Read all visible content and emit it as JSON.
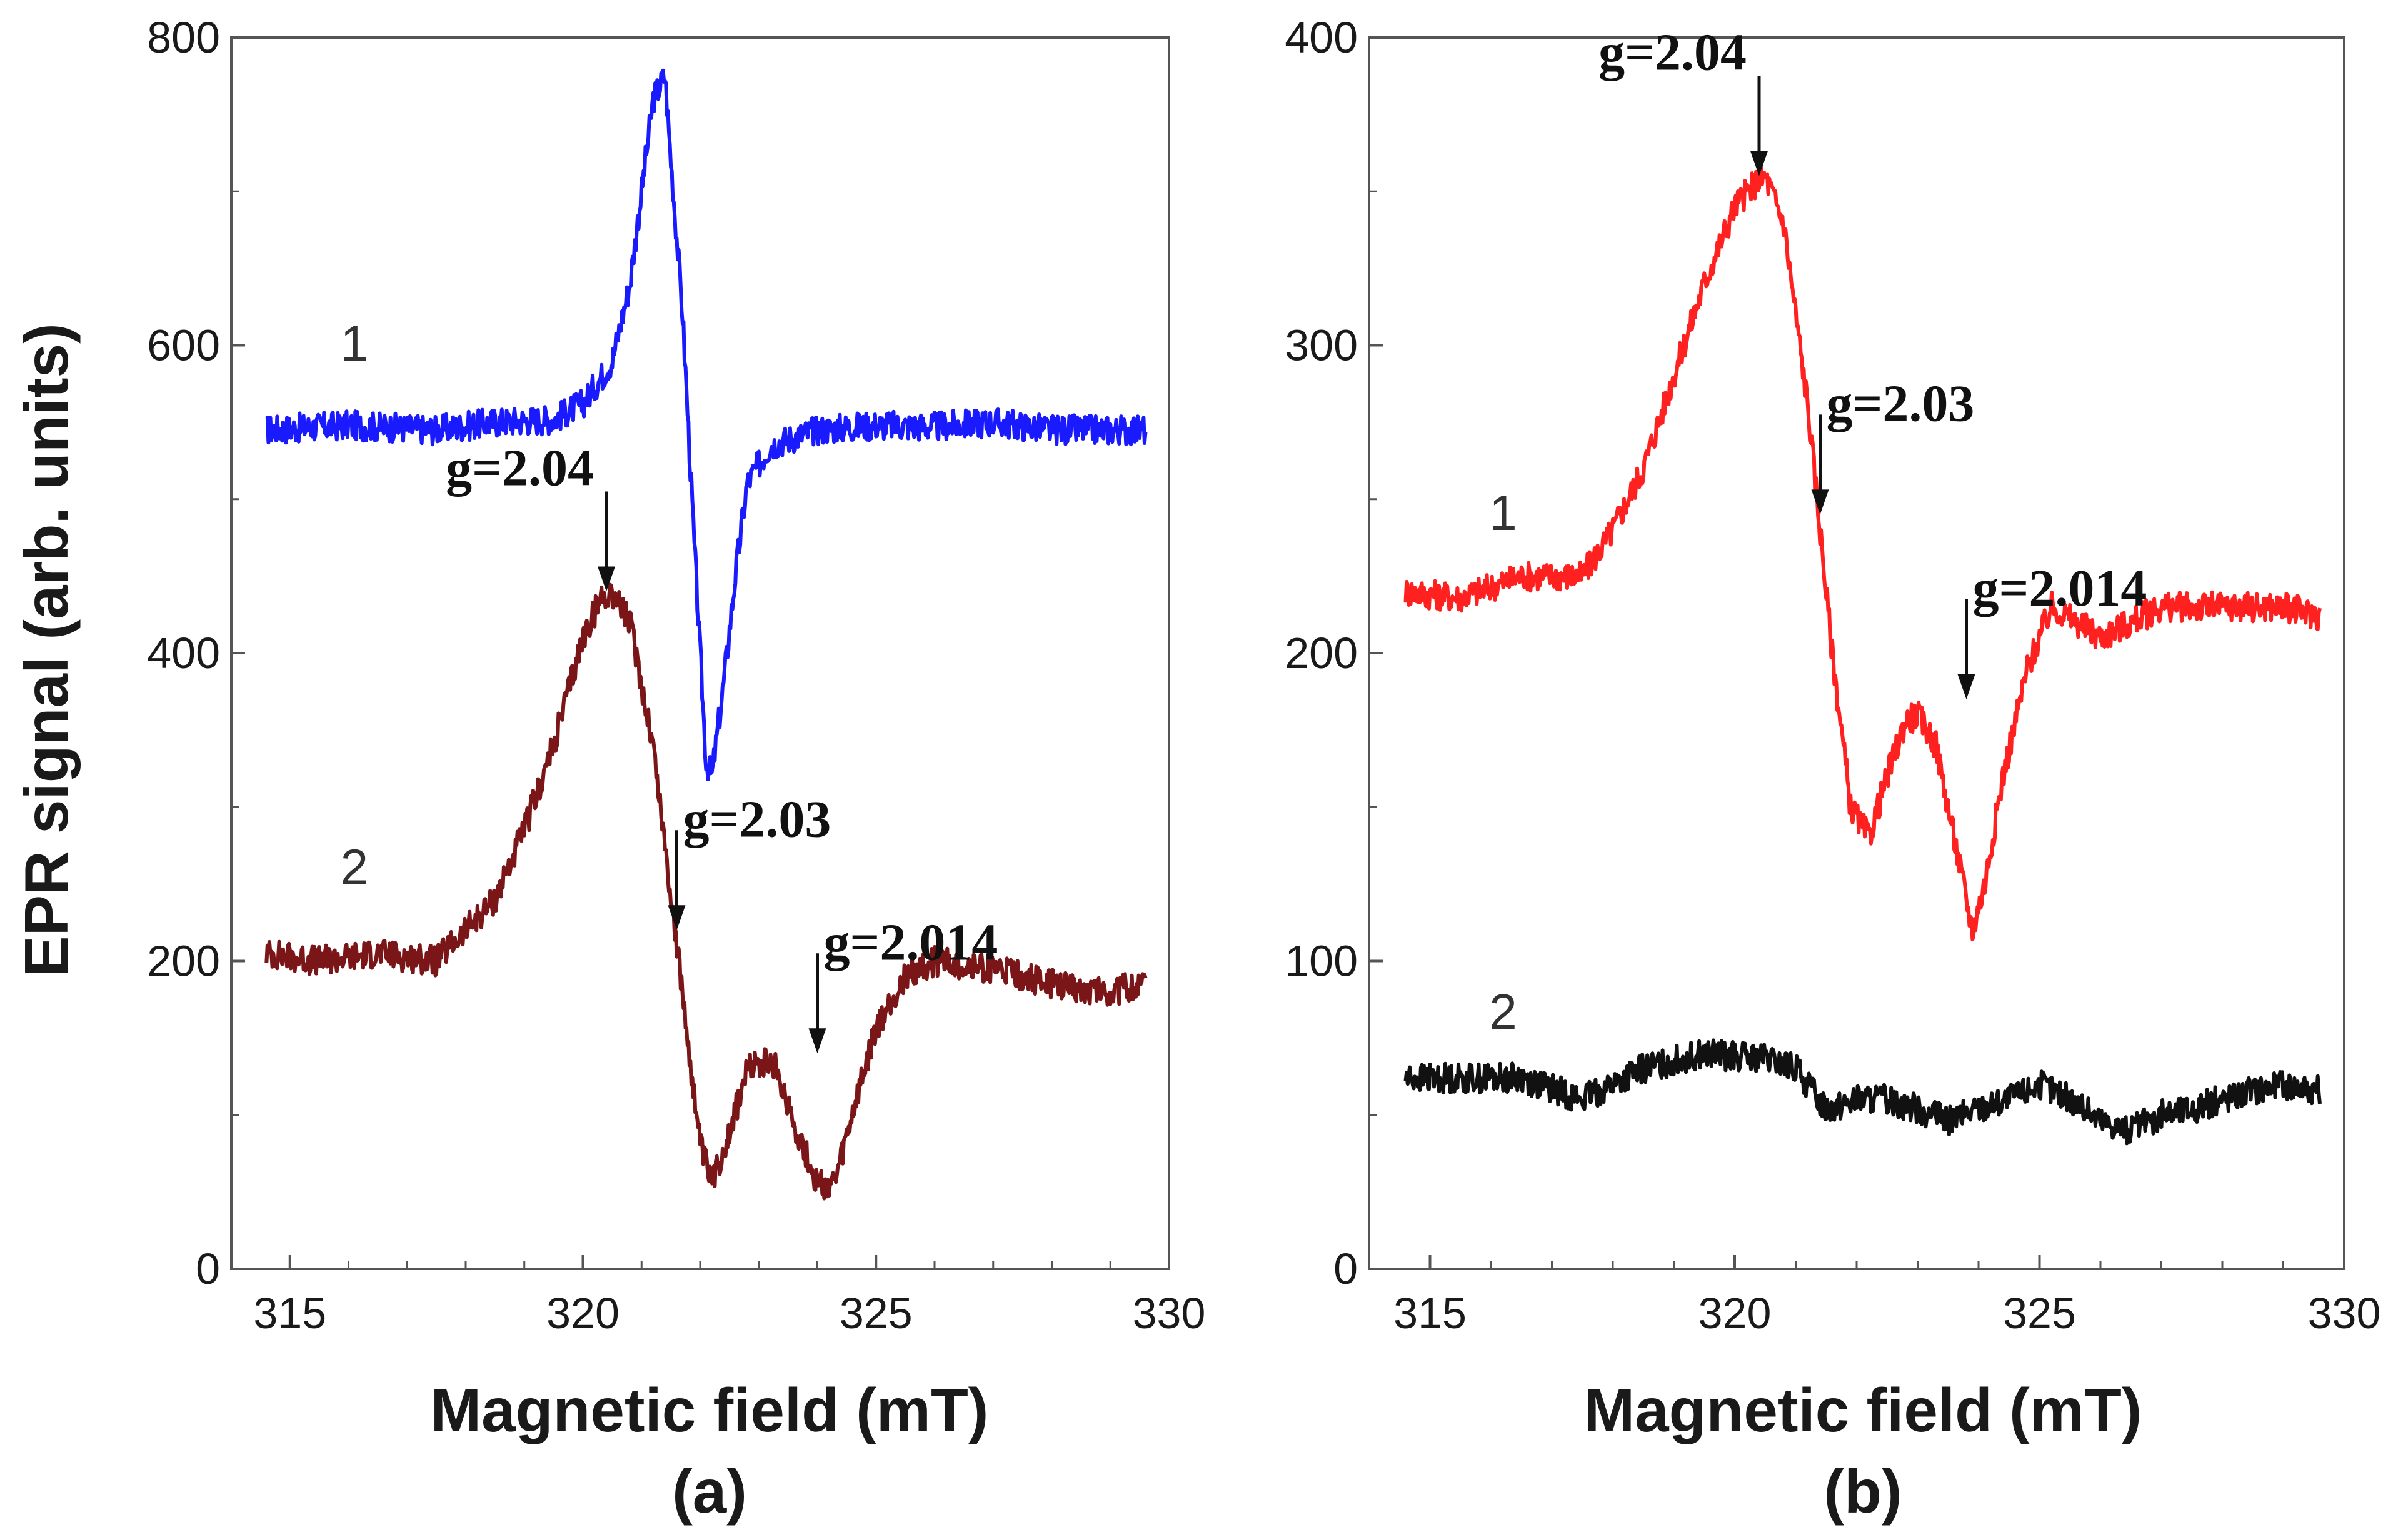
{
  "figure": {
    "ylabel": "EPR signal (arb. units)",
    "panels": [
      {
        "id": "a",
        "label": "(a)"
      },
      {
        "id": "b",
        "label": "(b)"
      }
    ]
  },
  "chart_data": [
    {
      "type": "line",
      "panel": "(a)",
      "xlabel": "Magnetic field (mT)",
      "ylabel": "EPR signal (arb. units)",
      "xlim": [
        314,
        330
      ],
      "ylim": [
        0,
        800
      ],
      "xticks": [
        315,
        320,
        325,
        330
      ],
      "yticks": [
        0,
        200,
        400,
        600,
        800
      ],
      "series": [
        {
          "name": "1",
          "color": "#1a1aff",
          "x": [
            314.6,
            316,
            317.5,
            318.5,
            319.5,
            320,
            320.5,
            320.8,
            321.0,
            321.2,
            321.4,
            321.5,
            321.7,
            321.9,
            322.0,
            322.1,
            322.2,
            322.4,
            322.6,
            322.8,
            323.2,
            324,
            325,
            326,
            327,
            328,
            329,
            329.6
          ],
          "y": [
            545,
            548,
            545,
            550,
            552,
            562,
            590,
            640,
            700,
            760,
            775,
            720,
            620,
            470,
            400,
            330,
            320,
            380,
            450,
            510,
            535,
            545,
            548,
            547,
            550,
            545,
            545,
            545
          ]
        },
        {
          "name": "2",
          "color": "#7a1518",
          "x": [
            314.6,
            315.5,
            316.5,
            317.5,
            318.5,
            319.0,
            319.5,
            320.0,
            320.3,
            320.5,
            320.8,
            321.2,
            321.6,
            322.0,
            322.2,
            322.5,
            322.8,
            323.0,
            323.3,
            323.6,
            324.0,
            324.3,
            324.6,
            325.0,
            325.5,
            326,
            327,
            328,
            329,
            329.6
          ],
          "y": [
            205,
            200,
            205,
            200,
            240,
            285,
            340,
            410,
            435,
            440,
            420,
            340,
            210,
            80,
            55,
            90,
            128,
            135,
            130,
            95,
            55,
            55,
            100,
            155,
            190,
            200,
            195,
            185,
            180,
            185
          ]
        }
      ],
      "annotations": [
        {
          "text": "g=2.04",
          "x": 320.4,
          "y": 440
        },
        {
          "text": "g=2.03",
          "x": 321.6,
          "y": 220
        },
        {
          "text": "g=2.014",
          "x": 324.0,
          "y": 140
        }
      ],
      "series_labels": [
        {
          "text": "1",
          "x": 316.1,
          "y": 590
        },
        {
          "text": "2",
          "x": 316.1,
          "y": 250
        }
      ]
    },
    {
      "type": "line",
      "panel": "(b)",
      "xlabel": "Magnetic field (mT)",
      "ylabel": "EPR signal (arb. units)",
      "xlim": [
        314,
        330
      ],
      "ylim": [
        0,
        400
      ],
      "xticks": [
        315,
        320,
        325,
        330
      ],
      "yticks": [
        0,
        100,
        200,
        300,
        400
      ],
      "series": [
        {
          "name": "1",
          "color": "#ff2020",
          "x": [
            314.6,
            315.5,
            316.5,
            317.5,
            318.0,
            318.5,
            319.0,
            319.5,
            320.0,
            320.3,
            320.5,
            320.8,
            321.2,
            321.6,
            321.9,
            322.2,
            322.5,
            322.8,
            323.0,
            323.3,
            323.6,
            323.9,
            324.1,
            324.4,
            324.8,
            325.2,
            326,
            327,
            328,
            329,
            329.6
          ],
          "y": [
            220,
            218,
            225,
            225,
            240,
            260,
            290,
            320,
            345,
            352,
            355,
            340,
            280,
            200,
            150,
            140,
            160,
            178,
            180,
            170,
            140,
            110,
            125,
            160,
            195,
            215,
            205,
            215,
            215,
            215,
            212
          ]
        },
        {
          "name": "2",
          "color": "#111111",
          "x": [
            314.6,
            315.5,
            316.5,
            317.5,
            318.5,
            319.5,
            320.5,
            321.0,
            321.5,
            322.0,
            322.5,
            323.0,
            323.5,
            324.0,
            324.5,
            325.0,
            325.5,
            326.0,
            326.5,
            327.0,
            327.5,
            328.0,
            328.5,
            329.0,
            329.6
          ],
          "y": [
            62,
            62,
            62,
            55,
            65,
            70,
            68,
            65,
            52,
            55,
            55,
            52,
            48,
            52,
            55,
            60,
            55,
            48,
            45,
            50,
            52,
            55,
            58,
            60,
            58
          ]
        }
      ],
      "annotations": [
        {
          "text": "g=2.04",
          "x": 320.4,
          "y": 355
        },
        {
          "text": "g=2.03",
          "x": 321.4,
          "y": 245
        },
        {
          "text": "g=2.014",
          "x": 323.8,
          "y": 185
        }
      ],
      "series_labels": [
        {
          "text": "1",
          "x": 316.2,
          "y": 240
        },
        {
          "text": "2",
          "x": 316.2,
          "y": 78
        }
      ]
    }
  ]
}
